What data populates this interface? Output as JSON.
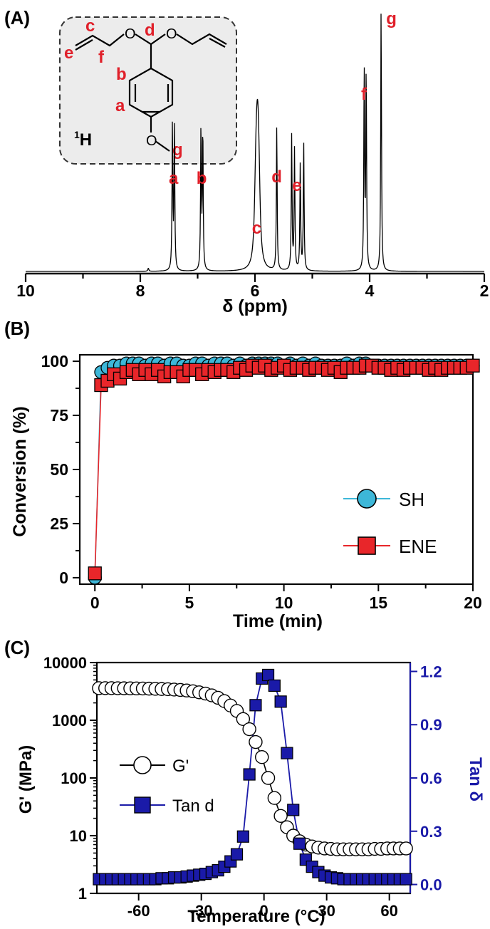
{
  "colors": {
    "black": "#000000",
    "peak_label": "#e0202a",
    "sh": "#3db7d8",
    "ene": "#e8262a",
    "tan": "#1a1aa8",
    "inset_fill": "#ececec"
  },
  "panelA": {
    "panel_label": "(A)",
    "inset_label": "1H",
    "inset_label_sup": "1",
    "inset_label_main": "H",
    "structure_labels": {
      "a": "a",
      "b": "b",
      "c": "c",
      "d": "d",
      "e": "e",
      "f": "f",
      "g": "g",
      "o1": "O",
      "o2": "O",
      "o3": "O"
    }
  },
  "panelB": {
    "panel_label": "(B)"
  },
  "panelC": {
    "panel_label": "(C)"
  },
  "chart_data": [
    {
      "type": "line",
      "title": "",
      "xlabel": "δ (ppm)",
      "ylabel": "",
      "xlim": [
        10,
        2
      ],
      "x_reversed": true,
      "xticks": [
        "10",
        "8",
        "6",
        "4",
        "2"
      ],
      "peak_labels": [
        "a",
        "b",
        "c",
        "d",
        "e",
        "f",
        "g"
      ],
      "peaks": [
        {
          "label": "a",
          "ppm": 7.44,
          "height": 0.55
        },
        {
          "label": "b",
          "ppm": 6.93,
          "height": 0.55
        },
        {
          "label": "c",
          "ppm": 5.97,
          "height": 0.3
        },
        {
          "label": "d",
          "ppm": 5.62,
          "height": 0.55
        },
        {
          "label": "e",
          "ppm": 5.27,
          "height": 0.51
        },
        {
          "label": "f",
          "ppm": 4.08,
          "height": 0.77
        },
        {
          "label": "g",
          "ppm": 3.8,
          "height": 1.0
        }
      ]
    },
    {
      "type": "scatter",
      "title": "",
      "xlabel": "Time (min)",
      "ylabel": "Conversion (%)",
      "xlim": [
        -0.8,
        20
      ],
      "ylim": [
        -3,
        103
      ],
      "xticks": [
        "0",
        "5",
        "10",
        "15",
        "20"
      ],
      "yticks": [
        "0",
        "25",
        "50",
        "75",
        "100"
      ],
      "legend_position": "bottom-right",
      "series": [
        {
          "name": "SH",
          "x": [
            0,
            0.33,
            0.67,
            1,
            1.33,
            1.67,
            2,
            2.33,
            2.67,
            3,
            3.33,
            3.67,
            4,
            4.33,
            4.67,
            5,
            5.33,
            5.67,
            6,
            6.33,
            6.67,
            7,
            7.33,
            7.67,
            8,
            8.33,
            8.67,
            9,
            9.33,
            9.67,
            10,
            10.33,
            10.67,
            11,
            11.33,
            11.67,
            12,
            12.33,
            12.67,
            13,
            13.33,
            13.67,
            14,
            14.33,
            14.67,
            15,
            15.33,
            15.67,
            16,
            16.33,
            16.67,
            17,
            17.33,
            17.67,
            18,
            18.33,
            18.67,
            19,
            19.33,
            19.67,
            20
          ],
          "y": [
            0,
            95,
            97,
            98,
            98,
            99,
            99,
            99,
            98,
            99,
            99,
            98,
            99,
            99,
            98,
            98,
            99,
            99,
            98,
            99,
            99,
            99,
            98,
            99,
            98,
            99,
            99,
            99,
            99,
            99,
            98,
            99,
            98,
            99,
            98,
            99,
            98,
            98,
            98,
            98,
            99,
            98,
            99,
            99,
            98,
            98,
            98,
            98,
            98,
            98,
            98,
            98,
            98,
            98,
            98,
            98,
            98,
            98,
            98,
            98,
            98
          ]
        },
        {
          "name": "ENE",
          "x": [
            0,
            0.33,
            0.67,
            1,
            1.33,
            1.67,
            2,
            2.33,
            2.67,
            3,
            3.33,
            3.67,
            4,
            4.33,
            4.67,
            5,
            5.33,
            5.67,
            6,
            6.33,
            6.67,
            7,
            7.33,
            7.67,
            8,
            8.33,
            8.67,
            9,
            9.33,
            9.67,
            10,
            10.33,
            10.67,
            11,
            11.33,
            11.67,
            12,
            12.33,
            12.67,
            13,
            13.33,
            13.67,
            14,
            14.33,
            14.67,
            15,
            15.33,
            15.67,
            16,
            16.33,
            16.67,
            17,
            17.33,
            17.67,
            18,
            18.33,
            18.67,
            19,
            19.33,
            19.67,
            20
          ],
          "y": [
            2,
            89,
            91,
            94,
            92,
            95,
            96,
            94,
            96,
            94,
            96,
            93,
            95,
            95,
            93,
            96,
            96,
            94,
            96,
            95,
            96,
            96,
            95,
            97,
            96,
            98,
            97,
            98,
            96,
            97,
            98,
            96,
            97,
            97,
            96,
            97,
            97,
            96,
            97,
            95,
            97,
            97,
            97,
            98,
            98,
            97,
            97,
            96,
            97,
            96,
            97,
            97,
            97,
            96,
            97,
            96,
            97,
            97,
            97,
            97,
            98
          ]
        }
      ]
    },
    {
      "type": "scatter",
      "title": "",
      "xlabel": "Temperature (°C)",
      "ylabel": "G' (MPa)",
      "y2label": "Tan δ",
      "xlim": [
        -80,
        70
      ],
      "ylim": [
        1,
        10000
      ],
      "yscale": "log",
      "y2lim": [
        -0.05,
        1.25
      ],
      "xticks": [
        "-60",
        "-30",
        "0",
        "30",
        "60"
      ],
      "yticks": [
        "1",
        "10",
        "100",
        "1000",
        "10000"
      ],
      "y2ticks": [
        "0.0",
        "0.3",
        "0.6",
        "0.9",
        "1.2"
      ],
      "legend_position": "left",
      "series": [
        {
          "name": "G'",
          "axis": "left",
          "x": [
            -79,
            -76,
            -73,
            -70,
            -67,
            -64,
            -61,
            -58,
            -55,
            -52,
            -49,
            -46,
            -43,
            -40,
            -37,
            -34,
            -31,
            -28,
            -25,
            -22,
            -19,
            -16,
            -13,
            -10,
            -7,
            -4,
            -1,
            2,
            5,
            8,
            11,
            14,
            17,
            20,
            23,
            26,
            29,
            32,
            35,
            38,
            41,
            44,
            47,
            50,
            53,
            56,
            59,
            62,
            65,
            68
          ],
          "y": [
            3600,
            3600,
            3600,
            3590,
            3580,
            3570,
            3560,
            3550,
            3530,
            3510,
            3480,
            3450,
            3400,
            3350,
            3280,
            3180,
            3050,
            2900,
            2700,
            2450,
            2150,
            1800,
            1450,
            1050,
            700,
            420,
            230,
            100,
            45,
            22,
            14,
            10,
            8,
            7,
            6.5,
            6.2,
            6.0,
            5.9,
            5.8,
            5.8,
            5.8,
            5.8,
            5.8,
            5.8,
            5.9,
            5.9,
            6.0,
            6.0,
            6.0,
            6.0
          ]
        },
        {
          "name": "Tan d",
          "axis": "right",
          "x": [
            -79,
            -76,
            -73,
            -70,
            -67,
            -64,
            -61,
            -58,
            -55,
            -52,
            -49,
            -46,
            -43,
            -40,
            -37,
            -34,
            -31,
            -28,
            -25,
            -22,
            -19,
            -16,
            -13,
            -10,
            -7,
            -4,
            -1,
            2,
            5,
            8,
            11,
            14,
            17,
            20,
            23,
            26,
            29,
            32,
            35,
            38,
            41,
            44,
            47,
            50,
            53,
            56,
            59,
            62,
            65,
            68
          ],
          "y": [
            0.03,
            0.03,
            0.03,
            0.03,
            0.03,
            0.03,
            0.03,
            0.03,
            0.03,
            0.03,
            0.035,
            0.035,
            0.04,
            0.04,
            0.045,
            0.05,
            0.055,
            0.06,
            0.07,
            0.08,
            0.1,
            0.13,
            0.17,
            0.27,
            0.62,
            1.01,
            1.16,
            1.18,
            1.12,
            1.03,
            0.74,
            0.42,
            0.23,
            0.14,
            0.1,
            0.07,
            0.05,
            0.04,
            0.035,
            0.03,
            0.03,
            0.03,
            0.03,
            0.03,
            0.03,
            0.03,
            0.03,
            0.03,
            0.03,
            0.03
          ]
        }
      ]
    }
  ]
}
